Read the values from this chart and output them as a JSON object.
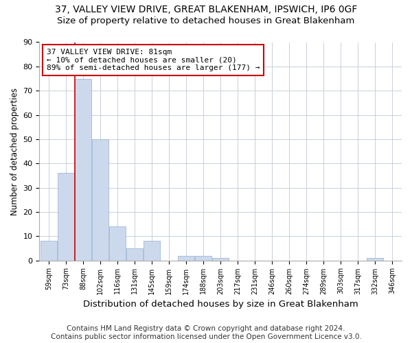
{
  "title1": "37, VALLEY VIEW DRIVE, GREAT BLAKENHAM, IPSWICH, IP6 0GF",
  "title2": "Size of property relative to detached houses in Great Blakenham",
  "xlabel": "Distribution of detached houses by size in Great Blakenham",
  "ylabel": "Number of detached properties",
  "footer": "Contains HM Land Registry data © Crown copyright and database right 2024.\nContains public sector information licensed under the Open Government Licence v3.0.",
  "bin_labels": [
    "59sqm",
    "73sqm",
    "88sqm",
    "102sqm",
    "116sqm",
    "131sqm",
    "145sqm",
    "159sqm",
    "174sqm",
    "188sqm",
    "203sqm",
    "217sqm",
    "231sqm",
    "246sqm",
    "260sqm",
    "274sqm",
    "289sqm",
    "303sqm",
    "317sqm",
    "332sqm",
    "346sqm"
  ],
  "bar_values": [
    8,
    36,
    75,
    50,
    14,
    5,
    8,
    0,
    2,
    2,
    1,
    0,
    0,
    0,
    0,
    0,
    0,
    0,
    0,
    1,
    0
  ],
  "bar_color": "#ccd9ec",
  "bar_edge_color": "#a0b8d8",
  "property_line_x": 1.5,
  "annotation_text": "37 VALLEY VIEW DRIVE: 81sqm\n← 10% of detached houses are smaller (20)\n89% of semi-detached houses are larger (177) →",
  "annotation_box_color": "white",
  "annotation_box_edge_color": "#cc0000",
  "vline_color": "#cc0000",
  "ylim": [
    0,
    90
  ],
  "yticks": [
    0,
    10,
    20,
    30,
    40,
    50,
    60,
    70,
    80,
    90
  ],
  "background_color": "#ffffff",
  "grid_color": "#c8d0dc",
  "title1_fontsize": 10,
  "title2_fontsize": 9.5,
  "xlabel_fontsize": 9.5,
  "ylabel_fontsize": 8.5,
  "footer_fontsize": 7.5,
  "tick_fontsize": 8,
  "xtick_fontsize": 7
}
